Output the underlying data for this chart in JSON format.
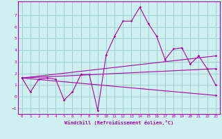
{
  "xlabel": "Windchill (Refroidissement éolien,°C)",
  "bg_color": "#cff0f0",
  "grid_color": "#a0d0d0",
  "line_color": "#aa00aa",
  "xlim": [
    -0.5,
    23.5
  ],
  "ylim": [
    -1.5,
    8.2
  ],
  "xticks": [
    0,
    1,
    2,
    3,
    4,
    5,
    6,
    7,
    8,
    9,
    10,
    11,
    12,
    13,
    14,
    15,
    16,
    17,
    18,
    19,
    20,
    21,
    22,
    23
  ],
  "yticks": [
    -1,
    0,
    1,
    2,
    3,
    4,
    5,
    6,
    7
  ],
  "series1": [
    [
      0,
      1.6
    ],
    [
      1,
      0.4
    ],
    [
      2,
      1.5
    ],
    [
      3,
      1.6
    ],
    [
      4,
      1.5
    ],
    [
      5,
      -0.3
    ],
    [
      6,
      0.4
    ],
    [
      7,
      1.9
    ],
    [
      8,
      1.9
    ],
    [
      9,
      -1.2
    ],
    [
      10,
      3.6
    ],
    [
      11,
      5.2
    ],
    [
      12,
      6.5
    ],
    [
      13,
      6.5
    ],
    [
      14,
      7.7
    ],
    [
      15,
      6.3
    ],
    [
      16,
      5.2
    ],
    [
      17,
      3.2
    ],
    [
      18,
      4.1
    ],
    [
      19,
      4.2
    ],
    [
      20,
      2.8
    ],
    [
      21,
      3.5
    ],
    [
      22,
      2.4
    ],
    [
      23,
      1.0
    ]
  ],
  "series2": [
    [
      0,
      1.6
    ],
    [
      23,
      0.1
    ]
  ],
  "series3": [
    [
      0,
      1.6
    ],
    [
      23,
      2.4
    ]
  ],
  "series4": [
    [
      0,
      1.6
    ],
    [
      23,
      3.5
    ]
  ]
}
